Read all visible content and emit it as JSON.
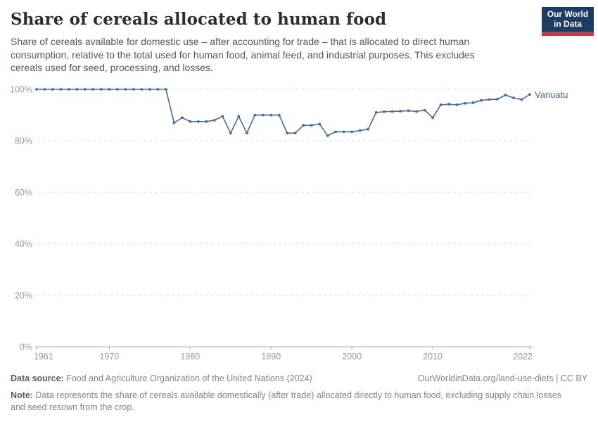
{
  "header": {
    "title": "Share of cereals allocated to human food",
    "subtitle": "Share of cereals available for domestic use – after accounting for trade – that is allocated to direct human consumption, relative to the total used for human food, animal feed, and industrial purposes. This excludes cereals used for seed, processing, and losses.",
    "logo": {
      "line1": "Our World",
      "line2": "in Data"
    }
  },
  "chart_data": {
    "type": "line",
    "title": "Share of cereals allocated to human food",
    "entity_label": "Vanuatu",
    "x": [
      1961,
      1962,
      1963,
      1964,
      1965,
      1966,
      1967,
      1968,
      1969,
      1970,
      1971,
      1972,
      1973,
      1974,
      1975,
      1976,
      1977,
      1978,
      1979,
      1980,
      1981,
      1982,
      1983,
      1984,
      1985,
      1986,
      1987,
      1988,
      1989,
      1990,
      1991,
      1992,
      1993,
      1994,
      1995,
      1996,
      1997,
      1998,
      1999,
      2000,
      2001,
      2002,
      2003,
      2004,
      2005,
      2006,
      2007,
      2008,
      2009,
      2010,
      2011,
      2012,
      2013,
      2014,
      2015,
      2016,
      2017,
      2018,
      2019,
      2020,
      2021,
      2022
    ],
    "series": [
      {
        "name": "Vanuatu",
        "values": [
          100,
          100,
          100,
          100,
          100,
          100,
          100,
          100,
          100,
          100,
          100,
          100,
          100,
          100,
          100,
          100,
          100,
          87,
          89,
          87.5,
          87.5,
          87.5,
          88,
          89.5,
          83,
          89.5,
          83,
          90,
          90,
          90,
          90,
          83,
          83,
          86,
          86,
          86.5,
          82,
          83.5,
          83.5,
          83.5,
          84,
          84.5,
          91,
          91.3,
          91.4,
          91.5,
          91.7,
          91.4,
          91.9,
          89,
          94,
          94.2,
          94,
          94.6,
          94.8,
          95.7,
          96,
          96.2,
          97.8,
          96.7,
          96,
          98
        ]
      }
    ],
    "xlim": [
      1961,
      2022
    ],
    "ylim": [
      0,
      100
    ],
    "xticks": [
      1961,
      1970,
      1980,
      1990,
      2000,
      2010,
      2022
    ],
    "yticks": [
      0,
      20,
      40,
      60,
      80,
      100
    ],
    "ytick_suffix": "%",
    "grid": "horizontal-dashed",
    "legend_position": "end-of-line",
    "line_color": "#4c6a9c",
    "grid_color": "#dcdcdc",
    "axis_color": "#a8a8a8",
    "tick_label_color": "#999999"
  },
  "footer": {
    "datasource_label": "Data source:",
    "datasource_text": " Food and Agriculture Organization of the United Nations (2024)",
    "link_text": "OurWorldinData.org/land-use-diets | CC BY",
    "note_label": "Note:",
    "note_text": " Data represents the share of cereals available domestically (after trade) allocated directly to human food, excluding supply chain losses and seed resown from the crop."
  }
}
